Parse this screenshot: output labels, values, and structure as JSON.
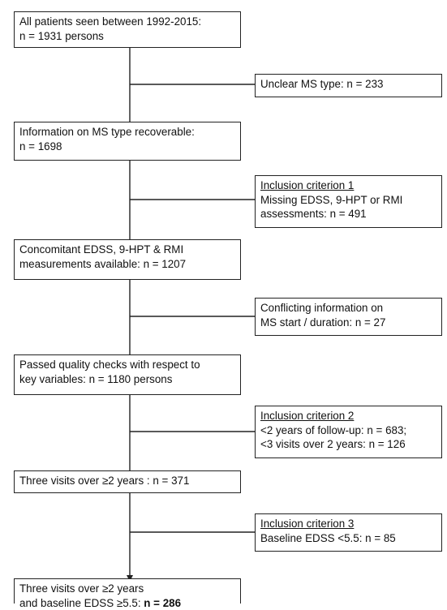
{
  "boxes": {
    "all_patients": {
      "line1": "All patients seen between 1992-2015:",
      "line2": "n = 1931 persons"
    },
    "unclear_ms": {
      "line1": "Unclear MS type: n = 233"
    },
    "ms_type_recoverable": {
      "line1": "Information on MS type recoverable:",
      "line2": "n = 1698"
    },
    "inclusion1": {
      "heading": "Inclusion criterion 1",
      "line1": "Missing EDSS, 9-HPT or RMI",
      "line2": "assessments: n = 491"
    },
    "concomitant": {
      "line1": "Concomitant EDSS, 9-HPT & RMI",
      "line2": "measurements available: n = 1207"
    },
    "conflicting": {
      "line1": "Conflicting information on",
      "line2": "MS start / duration: n = 27"
    },
    "quality_checks": {
      "line1": "Passed quality checks with respect to",
      "line2": "key variables: n = 1180 persons"
    },
    "inclusion2": {
      "heading": "Inclusion criterion 2",
      "line1": "<2 years of follow-up: n = 683;",
      "line2": "<3 visits over 2 years: n = 126"
    },
    "three_visits": {
      "line1": "Three visits over ≥2 years : n = 371"
    },
    "inclusion3": {
      "heading": "Inclusion criterion 3",
      "line1": "Baseline EDSS <5.5: n = 85"
    },
    "final": {
      "line1": "Three visits over ≥2 years",
      "line2_prefix": "and baseline EDSS ≥5.5: ",
      "line2_bold": "n = 286"
    }
  }
}
